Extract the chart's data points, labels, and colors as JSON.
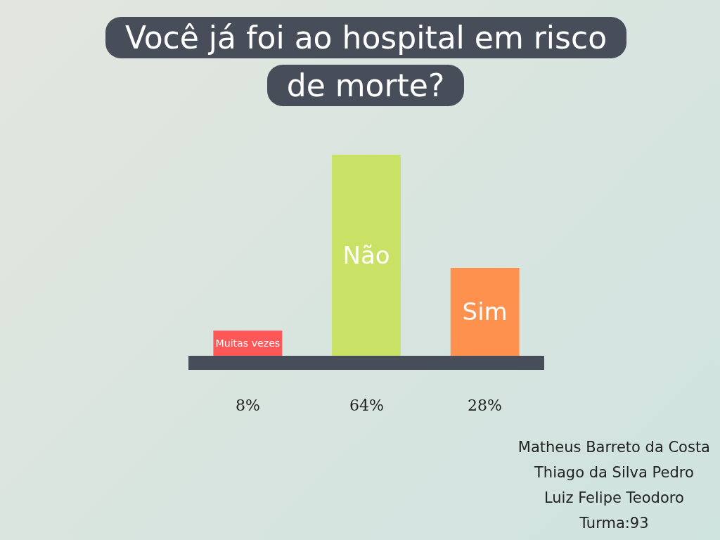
{
  "chart_data": {
    "type": "bar",
    "title": "Você já foi ao hospital em risco de morte?",
    "categories": [
      "Muitas vezes",
      "Não",
      "Sim"
    ],
    "values": [
      8,
      64,
      28
    ],
    "colors": [
      "#fe5757",
      "#c9e265",
      "#fe914d"
    ],
    "value_labels": [
      "8%",
      "64%",
      "28%"
    ],
    "grid": false,
    "legend": false,
    "annotations": [
      "Matheus Barreto da Costa",
      "Thiago da Silva Pedro",
      "Luiz Felipe Teodoro",
      "Turma:93"
    ]
  }
}
